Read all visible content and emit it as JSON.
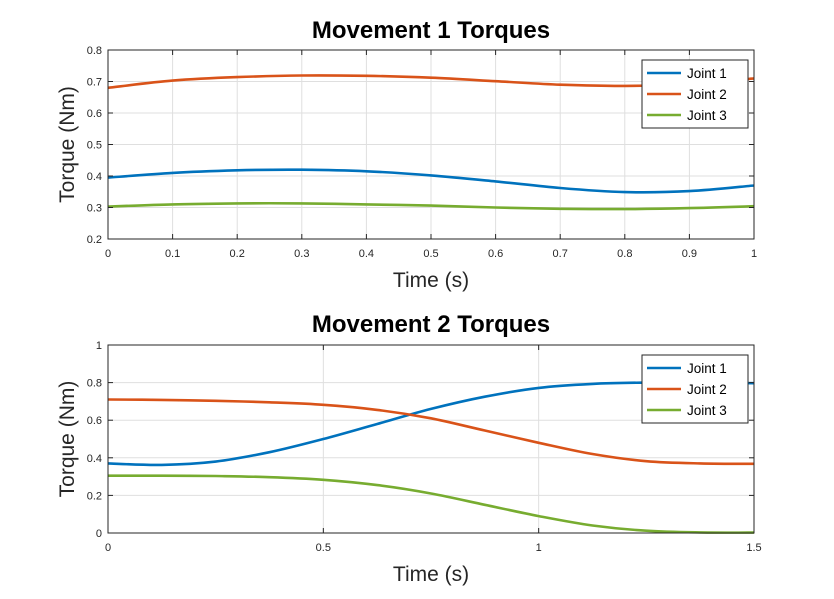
{
  "chart_data": [
    {
      "type": "line",
      "title": "Movement 1 Torques",
      "xlabel": "Time (s)",
      "ylabel": "Torque (Nm)",
      "xlim": [
        0,
        1
      ],
      "ylim": [
        0.2,
        0.8
      ],
      "xticks": [
        0,
        0.1,
        0.2,
        0.3,
        0.4,
        0.5,
        0.6,
        0.7,
        0.8,
        0.9,
        1
      ],
      "xtick_labels": [
        "0",
        "0.1",
        "0.2",
        "0.3",
        "0.4",
        "0.5",
        "0.6",
        "0.7",
        "0.8",
        "0.9",
        "1"
      ],
      "yticks": [
        0.2,
        0.3,
        0.4,
        0.5,
        0.6,
        0.7,
        0.8
      ],
      "ytick_labels": [
        "0.2",
        "0.3",
        "0.4",
        "0.5",
        "0.6",
        "0.7",
        "0.8"
      ],
      "grid": true,
      "legend": "top-right",
      "x": [
        0,
        0.1,
        0.2,
        0.3,
        0.4,
        0.5,
        0.6,
        0.7,
        0.8,
        0.9,
        1
      ],
      "series": [
        {
          "name": "Joint 1",
          "color": "#0072BD",
          "values": [
            0.395,
            0.41,
            0.418,
            0.42,
            0.415,
            0.402,
            0.383,
            0.362,
            0.349,
            0.352,
            0.37
          ]
        },
        {
          "name": "Joint 2",
          "color": "#D95319",
          "values": [
            0.68,
            0.703,
            0.714,
            0.719,
            0.718,
            0.712,
            0.701,
            0.69,
            0.686,
            0.692,
            0.71
          ]
        },
        {
          "name": "Joint 3",
          "color": "#77AC30",
          "values": [
            0.303,
            0.31,
            0.313,
            0.313,
            0.31,
            0.306,
            0.3,
            0.296,
            0.295,
            0.298,
            0.304
          ]
        }
      ]
    },
    {
      "type": "line",
      "title": "Movement 2 Torques",
      "xlabel": "Time (s)",
      "ylabel": "Torque (Nm)",
      "xlim": [
        0,
        1.5
      ],
      "ylim": [
        0,
        1
      ],
      "xticks": [
        0,
        0.5,
        1,
        1.5
      ],
      "xtick_labels": [
        "0",
        "0.5",
        "1",
        "1.5"
      ],
      "yticks": [
        0,
        0.2,
        0.4,
        0.6,
        0.8,
        1
      ],
      "ytick_labels": [
        "0",
        "0.2",
        "0.4",
        "0.6",
        "0.8",
        "1"
      ],
      "grid": true,
      "legend": "top-right",
      "x": [
        0,
        0.125,
        0.25,
        0.375,
        0.5,
        0.625,
        0.75,
        0.875,
        1,
        1.125,
        1.25,
        1.375,
        1.5
      ],
      "series": [
        {
          "name": "Joint 1",
          "color": "#0072BD",
          "values": [
            0.37,
            0.362,
            0.38,
            0.43,
            0.5,
            0.58,
            0.66,
            0.725,
            0.772,
            0.793,
            0.8,
            0.8,
            0.797
          ]
        },
        {
          "name": "Joint 2",
          "color": "#D95319",
          "values": [
            0.71,
            0.708,
            0.703,
            0.695,
            0.682,
            0.655,
            0.61,
            0.545,
            0.48,
            0.42,
            0.382,
            0.37,
            0.368
          ]
        },
        {
          "name": "Joint 3",
          "color": "#77AC30",
          "values": [
            0.305,
            0.305,
            0.303,
            0.297,
            0.283,
            0.255,
            0.21,
            0.15,
            0.09,
            0.04,
            0.012,
            0.003,
            0.002
          ]
        }
      ]
    }
  ]
}
